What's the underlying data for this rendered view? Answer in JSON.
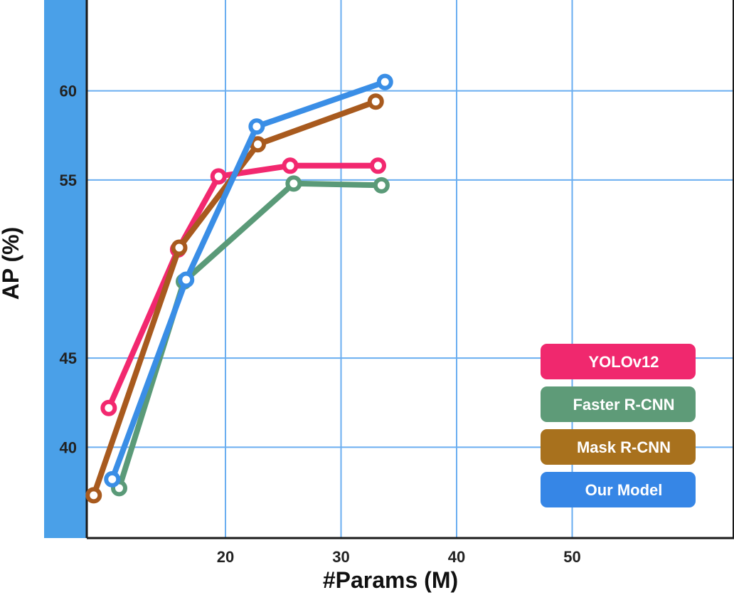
{
  "chart_data": {
    "type": "line",
    "title": "",
    "xlabel": "#Params (M)",
    "ylabel": "AP (%)",
    "xlim": [
      8,
      64
    ],
    "ylim": [
      34.9,
      65.1
    ],
    "xticks": [
      20,
      30,
      40,
      50
    ],
    "yticks": [
      40,
      45,
      55,
      60
    ],
    "grid": true,
    "legend_position": "bottom-right",
    "series": [
      {
        "name": "YOLOv12",
        "color": "#f2286f",
        "x": [
          9.9,
          15.9,
          19.4,
          25.6,
          33.2
        ],
        "y": [
          42.2,
          51.1,
          55.2,
          55.8,
          55.8
        ]
      },
      {
        "name": "Faster R-CNN",
        "color": "#5a9a78",
        "x": [
          10.8,
          16.4,
          25.9,
          33.5
        ],
        "y": [
          37.7,
          49.3,
          54.8,
          54.7
        ]
      },
      {
        "name": "Mask R-CNN",
        "color": "#a85a1e",
        "x": [
          8.6,
          16.0,
          22.8,
          33.0
        ],
        "y": [
          37.3,
          51.2,
          57.0,
          59.4
        ]
      },
      {
        "name": "Our Model",
        "color": "#3a8ee6",
        "x": [
          10.2,
          16.6,
          22.7,
          33.8
        ],
        "y": [
          38.2,
          49.4,
          58.0,
          60.5
        ]
      }
    ],
    "legend_colors": [
      "#f0286e",
      "#5e9b78",
      "#a8711d",
      "#3686e6"
    ]
  },
  "colors": {
    "grid": "#6aaef0",
    "left_band": "#4aa0e8",
    "frame": "#1a1a1a"
  }
}
